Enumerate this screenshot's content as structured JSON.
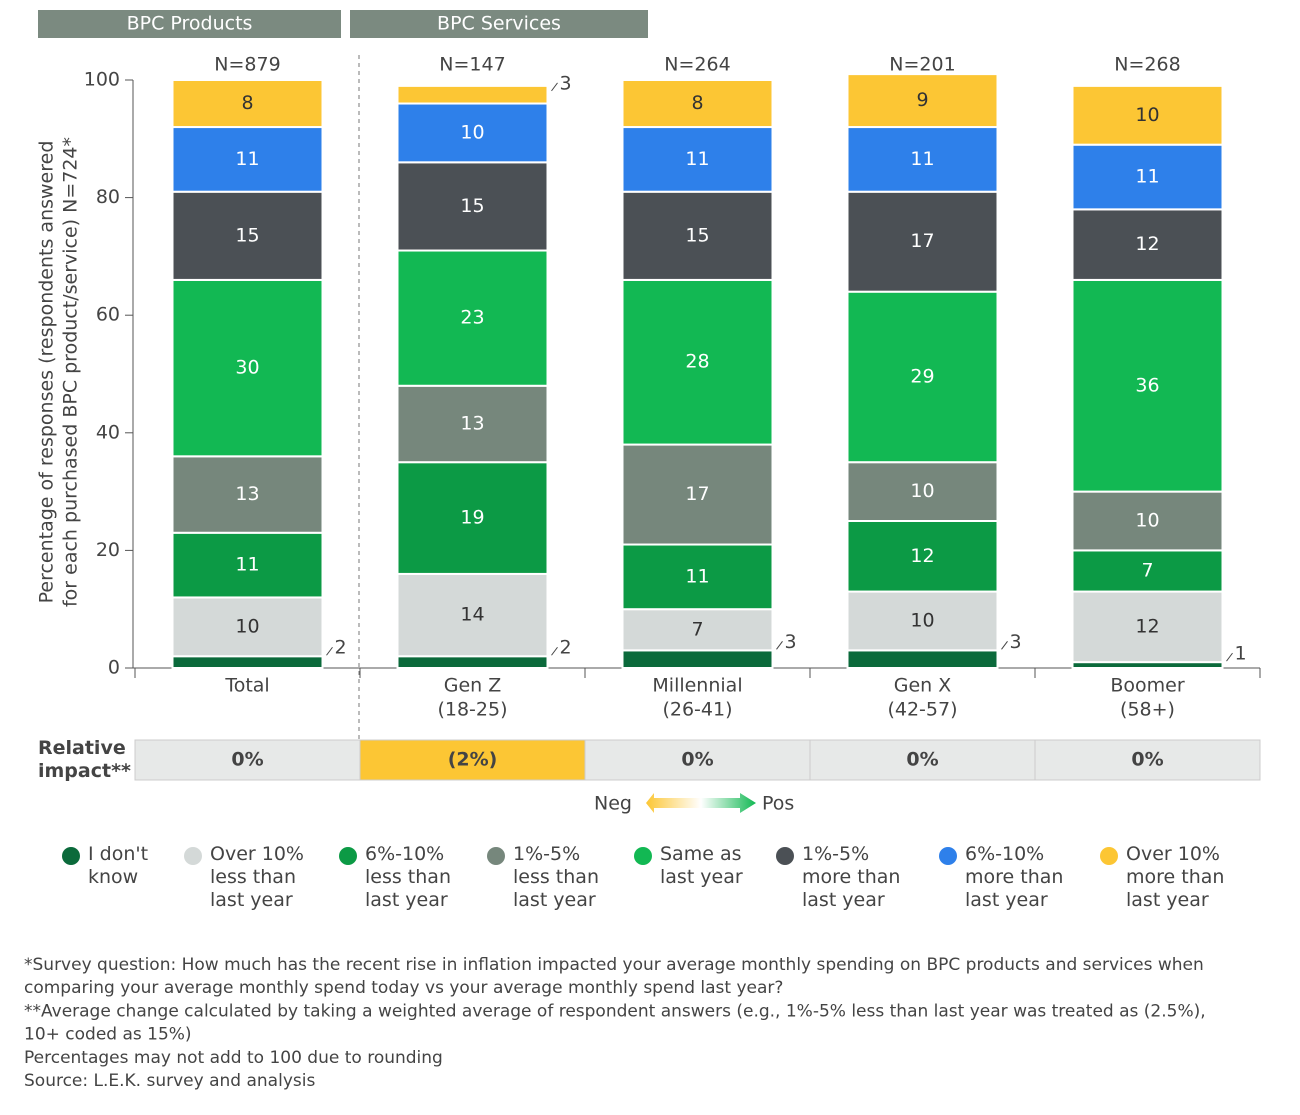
{
  "chart_data": {
    "type": "stacked_bar",
    "groups": [
      {
        "label": "BPC Products",
        "span": 1
      },
      {
        "label": "BPC Services",
        "span": 4
      }
    ],
    "ylabel": [
      "Percentage of responses (respondents answered",
      "for each purchased BPC product/service) N=724*"
    ],
    "categories": [
      [
        "Total"
      ],
      [
        "Gen Z",
        "(18-25)"
      ],
      [
        "Millennial",
        "(26-41)"
      ],
      [
        "Gen X",
        "(42-57)"
      ],
      [
        "Boomer",
        "(58+)"
      ]
    ],
    "n_labels": [
      "N=879",
      "N=147",
      "N=264",
      "N=201",
      "N=268"
    ],
    "ylim": [
      0,
      100
    ],
    "yticks": [
      0,
      20,
      40,
      60,
      80,
      100
    ],
    "series": [
      {
        "name": "I don't know",
        "color": "#0b6a3b",
        "values": [
          2,
          2,
          3,
          3,
          1
        ]
      },
      {
        "name": "Over 10% less than last year",
        "color": "#d4d9d8",
        "values": [
          10,
          14,
          7,
          10,
          12
        ]
      },
      {
        "name": "6%-10% less than last year",
        "color": "#0c9a45",
        "values": [
          11,
          19,
          11,
          12,
          7
        ]
      },
      {
        "name": "1%-5% less than last year",
        "color": "#76877c",
        "values": [
          13,
          13,
          17,
          10,
          10
        ]
      },
      {
        "name": "Same as last year",
        "color": "#12b853",
        "values": [
          30,
          23,
          28,
          29,
          36
        ]
      },
      {
        "name": "1%-5% more than last year",
        "color": "#4b5055",
        "values": [
          15,
          15,
          15,
          17,
          12
        ]
      },
      {
        "name": "6%-10% more than last year",
        "color": "#2e80ea",
        "values": [
          11,
          10,
          11,
          11,
          11
        ]
      },
      {
        "name": "Over 10% more than last year",
        "color": "#fcc634",
        "values": [
          8,
          3,
          8,
          9,
          10
        ]
      }
    ],
    "relative_impact": {
      "label": "Relative impact**",
      "values": [
        0,
        -2,
        0,
        0,
        0
      ],
      "value_labels": [
        "0%",
        "(2%)",
        "0%",
        "0%",
        "0%"
      ]
    },
    "scale": {
      "neg": "Neg",
      "pos": "Pos"
    },
    "footnotes": [
      "*Survey question: How much has the recent rise in inflation impacted your average monthly spending on BPC products and services when",
      "comparing your average monthly spend today vs your average monthly spend last year?",
      "**Average change calculated by taking a weighted average of respondent answers (e.g., 1%-5% less than last year was treated as (2.5%),",
      "10+ coded as 15%)",
      "Percentages may not add to 100 due to rounding",
      "Source: L.E.K. survey and analysis"
    ]
  }
}
